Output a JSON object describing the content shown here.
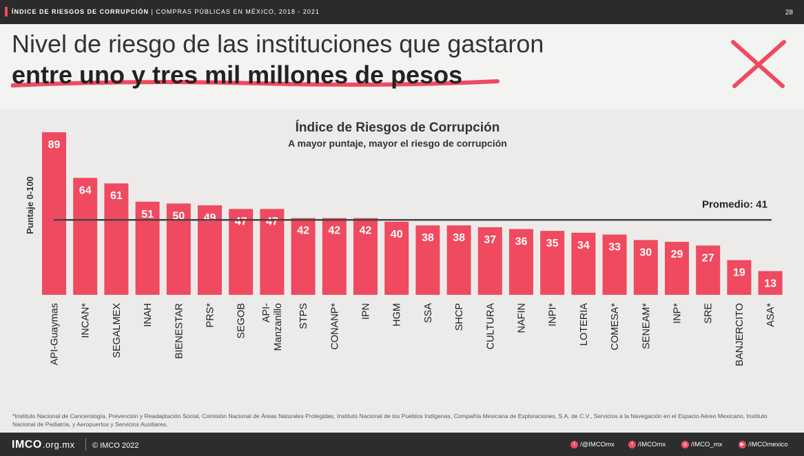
{
  "header": {
    "report_title": "ÍNDICE DE RIESGOS DE CORRUPCIÓN",
    "report_subtitle": "COMPRAS PÚBLICAS EN MÉXICO, 2018 - 2021",
    "page_number": "28"
  },
  "slide": {
    "title_line1": "Nivel de riesgo de las instituciones que gastaron",
    "title_line2": "entre uno y tres mil millones de pesos"
  },
  "colors": {
    "accent": "#ef4a60",
    "dark": "#2b2b2b"
  },
  "chart_data": {
    "type": "bar",
    "title": "Índice de Riesgos de Corrupción",
    "subtitle": "A mayor puntaje, mayor el riesgo de corrupción",
    "ylabel": "Puntaje 0-100",
    "xlabel": "",
    "ylim": [
      0,
      89
    ],
    "categories": [
      "API-Guaymas",
      "INCAN*",
      "SEGALMEX",
      "INAH",
      "BIENESTAR",
      "PRS*",
      "SEGOB",
      "API-\nManzanillo",
      "STPS",
      "CONANP*",
      "IPN",
      "HGM",
      "SSA",
      "SHCP",
      "CULTURA",
      "NAFIN",
      "INPI*",
      "LOTERIA",
      "COMESA*",
      "SENEAM*",
      "INP*",
      "SRE",
      "BANJERCITO",
      "ASA*"
    ],
    "values": [
      89,
      64,
      61,
      51,
      50,
      49,
      47,
      47,
      42,
      42,
      42,
      40,
      38,
      38,
      37,
      36,
      35,
      34,
      33,
      30,
      29,
      27,
      19,
      13
    ],
    "average": {
      "label": "Promedio: 41",
      "value": 41
    }
  },
  "footnote": "*Instituto Nacional de Cancerología, Prevención y Readaptación Social, Comisión Nacional de Áreas Naturales Protegidas, Instituto Nacional de los Pueblos Indígenas, Compañía Mexicana de Exploraciones, S.A. de C.V., Servicios a la Navegación en el Espacio Aéreo Mexicano, Instituto Nacional de Pediatría, y Aeropuertos y Servicios Auxiliares.",
  "footer": {
    "logo": "IMCO",
    "domain": ".org.mx",
    "copyright": "© IMCO 2022",
    "twitter": "/@IMCOmx",
    "facebook": "/IMCOmx",
    "instagram": "/IMCO_mx",
    "youtube": "/IMCOmexico"
  }
}
